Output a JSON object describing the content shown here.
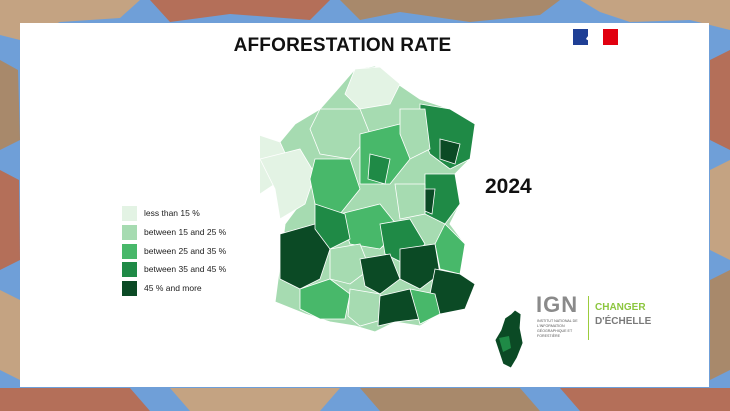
{
  "title": "AFFORESTATION RATE",
  "year": "2024",
  "colors": {
    "class_1": "#e3f3e4",
    "class_2": "#a6dbb1",
    "class_3": "#48b86a",
    "class_4": "#1f8a46",
    "class_5": "#0b4a25",
    "background_camo": [
      "#6f9fd8",
      "#c4a382",
      "#a8896b",
      "#b46f59"
    ]
  },
  "legend": {
    "items": [
      {
        "label": "less than 15 %",
        "color": "#e3f3e4"
      },
      {
        "label": "between 15 and 25 %",
        "color": "#a6dbb1"
      },
      {
        "label": "between 25 and 35 %",
        "color": "#48b86a"
      },
      {
        "label": "between 35 and 45 %",
        "color": "#1f8a46"
      },
      {
        "label": "45 % and more",
        "color": "#0b4a25"
      }
    ]
  },
  "map": {
    "subject": "France departments",
    "icons": [
      "france-map-icon",
      "corsica-map-icon"
    ]
  },
  "logo": {
    "letters": "IGN",
    "subtitle": "Institut national de l'information géographique et forestière",
    "tagline_1": "CHANGER",
    "tagline_2": "D'ÉCHELLE"
  },
  "flag_icon": "french-republic-flag-icon"
}
